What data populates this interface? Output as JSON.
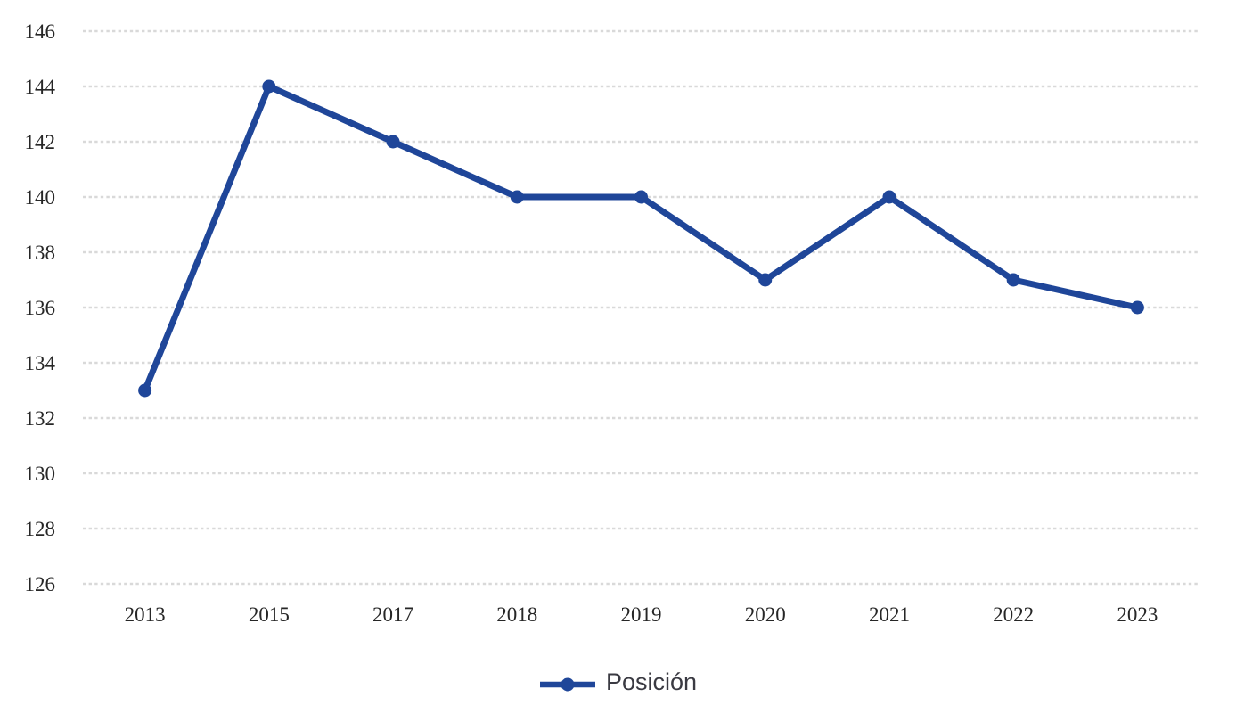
{
  "chart_data": {
    "type": "line",
    "title": "",
    "xlabel": "",
    "ylabel": "",
    "categories": [
      "2013",
      "2015",
      "2017",
      "2018",
      "2019",
      "2020",
      "2021",
      "2022",
      "2023"
    ],
    "series": [
      {
        "name": "Posición",
        "values": [
          133,
          144,
          142,
          140,
          140,
          137,
          140,
          137,
          136
        ],
        "color": "#1F4699",
        "marker": "circle"
      }
    ],
    "ylim": [
      126,
      146
    ],
    "yticks": [
      126,
      128,
      130,
      132,
      134,
      136,
      138,
      140,
      142,
      144,
      146
    ],
    "grid": "horizontal",
    "gridline_style": "dashed",
    "gridline_color": "#D9D9D9",
    "tick_label_color": "#262626",
    "legend_position": "bottom-center",
    "legend_text_color": "#3A3A42"
  }
}
